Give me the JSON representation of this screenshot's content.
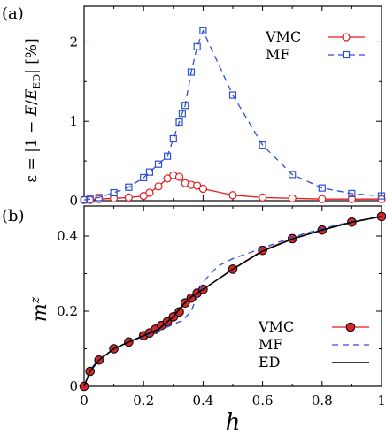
{
  "chart_data": [
    {
      "panel_label": "(a)",
      "type": "line",
      "ylabel": "ε = |1 − E/E_ED| [%]",
      "xlim": [
        0,
        1
      ],
      "ylim": [
        0,
        2.45
      ],
      "yticks": [
        "0",
        "1",
        "2"
      ],
      "ytick_values": [
        0,
        1,
        2
      ],
      "legend_position": "top-right",
      "series": [
        {
          "name": "VMC",
          "color": "#e41a1c",
          "style": "solid line, open circles",
          "x": [
            0.0,
            0.02,
            0.05,
            0.1,
            0.15,
            0.2,
            0.22,
            0.25,
            0.28,
            0.3,
            0.32,
            0.34,
            0.36,
            0.38,
            0.4,
            0.5,
            0.6,
            0.7,
            0.8,
            0.9,
            1.0
          ],
          "y": [
            0.01,
            0.01,
            0.02,
            0.03,
            0.04,
            0.06,
            0.1,
            0.18,
            0.28,
            0.32,
            0.3,
            0.22,
            0.2,
            0.19,
            0.15,
            0.07,
            0.04,
            0.03,
            0.02,
            0.02,
            0.02
          ]
        },
        {
          "name": "MF",
          "color": "#2c4fd6",
          "style": "dashed line, open squares",
          "x": [
            0.0,
            0.02,
            0.05,
            0.1,
            0.15,
            0.2,
            0.22,
            0.25,
            0.28,
            0.3,
            0.32,
            0.33,
            0.34,
            0.36,
            0.38,
            0.4,
            0.5,
            0.6,
            0.7,
            0.8,
            0.9,
            1.0
          ],
          "y": [
            0.01,
            0.02,
            0.04,
            0.1,
            0.17,
            0.29,
            0.36,
            0.46,
            0.56,
            0.78,
            0.99,
            1.1,
            1.2,
            1.62,
            1.94,
            2.14,
            1.33,
            0.7,
            0.33,
            0.16,
            0.09,
            0.06
          ]
        }
      ]
    },
    {
      "panel_label": "(b)",
      "type": "line",
      "ylabel": "m^z",
      "xlabel": "h",
      "xlim": [
        0,
        1
      ],
      "ylim": [
        0,
        0.48
      ],
      "xticks": [
        "0",
        "0.2",
        "0.4",
        "0.6",
        "0.8",
        "1"
      ],
      "xtick_values": [
        0,
        0.2,
        0.4,
        0.6,
        0.8,
        1.0
      ],
      "yticks": [
        "0",
        "0.2",
        "0.4"
      ],
      "ytick_values": [
        0,
        0.2,
        0.4
      ],
      "legend_position": "bottom-right",
      "series": [
        {
          "name": "VMC",
          "color": "#e41a1c",
          "style": "solid line, filled circles",
          "x": [
            0.0,
            0.02,
            0.05,
            0.1,
            0.15,
            0.2,
            0.22,
            0.24,
            0.26,
            0.28,
            0.3,
            0.32,
            0.34,
            0.36,
            0.38,
            0.4,
            0.5,
            0.6,
            0.7,
            0.8,
            0.9,
            1.0
          ],
          "y": [
            0.0,
            0.04,
            0.07,
            0.1,
            0.118,
            0.135,
            0.142,
            0.152,
            0.162,
            0.172,
            0.185,
            0.198,
            0.222,
            0.235,
            0.248,
            0.258,
            0.312,
            0.362,
            0.393,
            0.416,
            0.437,
            0.452
          ]
        },
        {
          "name": "MF",
          "color": "#2c4fd6",
          "style": "dashed line",
          "x": [
            0.0,
            0.02,
            0.05,
            0.1,
            0.15,
            0.2,
            0.25,
            0.3,
            0.33,
            0.36,
            0.38,
            0.4,
            0.45,
            0.5,
            0.6,
            0.7,
            0.8,
            0.9,
            1.0
          ],
          "y": [
            0.0,
            0.045,
            0.072,
            0.1,
            0.118,
            0.133,
            0.148,
            0.165,
            0.175,
            0.2,
            0.24,
            0.278,
            0.32,
            0.34,
            0.368,
            0.397,
            0.42,
            0.438,
            0.452
          ]
        },
        {
          "name": "ED",
          "color": "#000000",
          "style": "solid line",
          "x": [
            0.0,
            0.02,
            0.05,
            0.1,
            0.15,
            0.2,
            0.25,
            0.3,
            0.33,
            0.36,
            0.4,
            0.45,
            0.5,
            0.6,
            0.7,
            0.8,
            0.9,
            1.0
          ],
          "y": [
            0.0,
            0.04,
            0.07,
            0.1,
            0.118,
            0.135,
            0.152,
            0.185,
            0.215,
            0.238,
            0.258,
            0.285,
            0.312,
            0.36,
            0.392,
            0.416,
            0.437,
            0.452
          ]
        }
      ]
    }
  ]
}
